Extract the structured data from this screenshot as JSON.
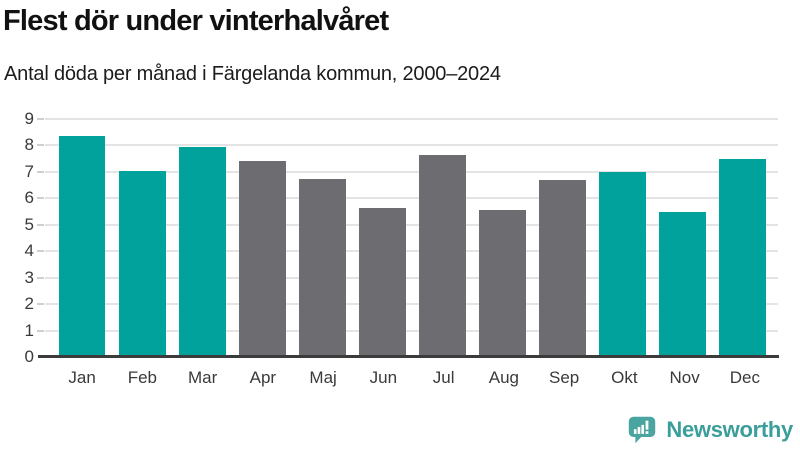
{
  "chart_data": {
    "type": "bar",
    "title": "Flest dör under vinterhalvåret",
    "subtitle": "Antal döda per månad i Färgelanda kommun, 2000–2024",
    "categories": [
      "Jan",
      "Feb",
      "Mar",
      "Apr",
      "Maj",
      "Jun",
      "Jul",
      "Aug",
      "Sep",
      "Okt",
      "Nov",
      "Dec"
    ],
    "values": [
      8.35,
      7.05,
      7.95,
      7.4,
      6.75,
      5.65,
      7.65,
      5.55,
      6.7,
      7.0,
      5.5,
      7.5
    ],
    "groups": [
      "winter",
      "winter",
      "winter",
      "summer",
      "summer",
      "summer",
      "summer",
      "summer",
      "summer",
      "winter",
      "winter",
      "winter"
    ],
    "colors": {
      "winter": "#00a29b",
      "summer": "#6c6c71"
    },
    "xlabel": "",
    "ylabel": "",
    "ylim": [
      0,
      9
    ],
    "yticks": [
      0,
      1,
      2,
      3,
      4,
      5,
      6,
      7,
      8,
      9
    ],
    "grid": true,
    "legend": "none"
  },
  "footer": {
    "brand": "Newsworthy",
    "brand_color": "#3a9e9a",
    "icon_color": "#4aa5a1"
  }
}
